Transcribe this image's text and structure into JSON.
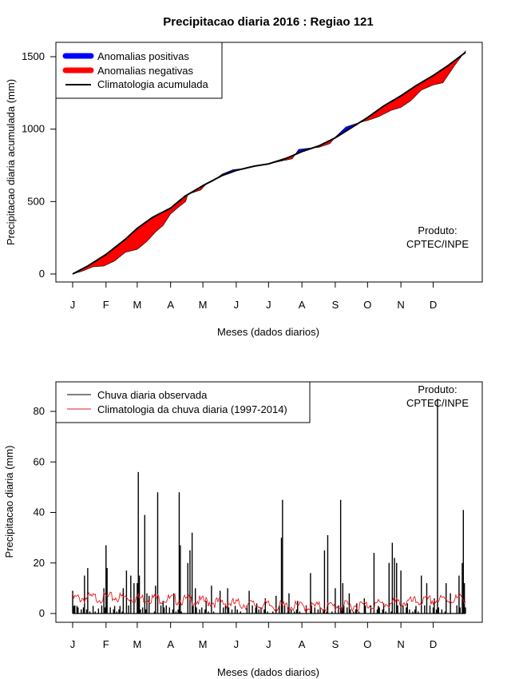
{
  "colors": {
    "positive": "#0000ff",
    "negative": "#ff0000",
    "line": "#000000",
    "clim_daily": "#e31a1c"
  },
  "chart_data": [
    {
      "type": "area",
      "title": "Precipitacao diaria 2016 : Regiao 121",
      "xlabel": "Meses (dados diarios)",
      "ylabel": "Precipitacao diaria acumulada (mm)",
      "ylim": [
        0,
        1560
      ],
      "yticks": [
        0,
        500,
        1000,
        1500
      ],
      "month_labels": [
        "J",
        "F",
        "M",
        "A",
        "M",
        "J",
        "J",
        "A",
        "S",
        "O",
        "N",
        "D"
      ],
      "month_start_day": [
        1,
        32,
        61,
        92,
        122,
        153,
        183,
        214,
        245,
        275,
        306,
        336
      ],
      "xlim_days": [
        1,
        366
      ],
      "legend": {
        "position": "top-left",
        "entries": [
          "Anomalias positivas",
          "Anomalias negativas",
          "Climatologia acumulada"
        ]
      },
      "annotation": [
        "Produto:",
        "CPTEC/INPE"
      ],
      "climatology": [
        [
          1,
          0
        ],
        [
          15,
          55
        ],
        [
          32,
          135
        ],
        [
          50,
          240
        ],
        [
          61,
          315
        ],
        [
          75,
          390
        ],
        [
          92,
          455
        ],
        [
          105,
          535
        ],
        [
          122,
          610
        ],
        [
          140,
          680
        ],
        [
          153,
          715
        ],
        [
          170,
          745
        ],
        [
          183,
          760
        ],
        [
          200,
          800
        ],
        [
          214,
          845
        ],
        [
          230,
          885
        ],
        [
          245,
          940
        ],
        [
          260,
          1010
        ],
        [
          275,
          1080
        ],
        [
          290,
          1160
        ],
        [
          306,
          1230
        ],
        [
          320,
          1300
        ],
        [
          336,
          1370
        ],
        [
          350,
          1440
        ],
        [
          366,
          1530
        ]
      ],
      "observed": [
        [
          1,
          0
        ],
        [
          10,
          20
        ],
        [
          20,
          50
        ],
        [
          30,
          55
        ],
        [
          40,
          90
        ],
        [
          50,
          150
        ],
        [
          61,
          170
        ],
        [
          70,
          225
        ],
        [
          78,
          290
        ],
        [
          85,
          335
        ],
        [
          92,
          415
        ],
        [
          100,
          465
        ],
        [
          106,
          500
        ],
        [
          108,
          550
        ],
        [
          120,
          580
        ],
        [
          125,
          620
        ],
        [
          131,
          640
        ],
        [
          140,
          690
        ],
        [
          150,
          720
        ],
        [
          160,
          728
        ],
        [
          170,
          742
        ],
        [
          183,
          760
        ],
        [
          195,
          780
        ],
        [
          205,
          795
        ],
        [
          211,
          860
        ],
        [
          220,
          868
        ],
        [
          230,
          875
        ],
        [
          240,
          900
        ],
        [
          245,
          945
        ],
        [
          255,
          1015
        ],
        [
          265,
          1040
        ],
        [
          275,
          1060
        ],
        [
          285,
          1085
        ],
        [
          297,
          1130
        ],
        [
          306,
          1150
        ],
        [
          315,
          1195
        ],
        [
          325,
          1270
        ],
        [
          336,
          1305
        ],
        [
          345,
          1320
        ],
        [
          355,
          1430
        ],
        [
          366,
          1540
        ]
      ]
    },
    {
      "type": "bar",
      "xlabel": "Meses (dados diarios)",
      "ylabel": "Precipitacao diaria (mm)",
      "ylim": [
        0,
        90
      ],
      "yticks": [
        0,
        20,
        40,
        60,
        80
      ],
      "month_labels": [
        "J",
        "F",
        "M",
        "A",
        "M",
        "J",
        "J",
        "A",
        "S",
        "O",
        "N",
        "D"
      ],
      "month_start_day": [
        1,
        32,
        61,
        92,
        122,
        153,
        183,
        214,
        245,
        275,
        306,
        336
      ],
      "xlim_days": [
        1,
        366
      ],
      "legend": {
        "position": "top-left",
        "entries": [
          "Chuva diaria observada",
          "Climatologia da chuva diaria (1997-2014)"
        ]
      },
      "annotation": [
        "Produto:",
        "CPTEC/INPE"
      ],
      "observed_daily_peaks": [
        [
          1,
          9
        ],
        [
          2,
          3
        ],
        [
          5,
          3
        ],
        [
          12,
          15
        ],
        [
          15,
          18
        ],
        [
          20,
          3
        ],
        [
          25,
          2
        ],
        [
          30,
          10
        ],
        [
          32,
          27
        ],
        [
          33,
          18
        ],
        [
          40,
          3
        ],
        [
          45,
          3
        ],
        [
          48,
          10
        ],
        [
          51,
          17
        ],
        [
          55,
          15
        ],
        [
          58,
          12
        ],
        [
          61,
          12
        ],
        [
          62,
          56
        ],
        [
          63,
          15
        ],
        [
          68,
          39
        ],
        [
          70,
          8
        ],
        [
          72,
          7
        ],
        [
          78,
          11
        ],
        [
          80,
          48
        ],
        [
          85,
          5
        ],
        [
          95,
          8
        ],
        [
          100,
          48
        ],
        [
          101,
          27
        ],
        [
          108,
          20
        ],
        [
          110,
          25
        ],
        [
          112,
          32
        ],
        [
          115,
          10
        ],
        [
          125,
          5
        ],
        [
          130,
          11
        ],
        [
          138,
          9
        ],
        [
          145,
          10
        ],
        [
          152,
          3
        ],
        [
          165,
          9
        ],
        [
          172,
          4
        ],
        [
          180,
          6
        ],
        [
          190,
          7
        ],
        [
          195,
          30
        ],
        [
          196,
          45
        ],
        [
          202,
          8
        ],
        [
          210,
          5
        ],
        [
          222,
          16
        ],
        [
          235,
          25
        ],
        [
          238,
          31
        ],
        [
          245,
          10
        ],
        [
          250,
          45
        ],
        [
          252,
          12
        ],
        [
          258,
          8
        ],
        [
          265,
          4
        ],
        [
          272,
          6
        ],
        [
          281,
          24
        ],
        [
          285,
          3
        ],
        [
          290,
          4
        ],
        [
          295,
          20
        ],
        [
          298,
          28
        ],
        [
          300,
          22
        ],
        [
          302,
          20
        ],
        [
          306,
          17
        ],
        [
          312,
          4
        ],
        [
          320,
          3
        ],
        [
          325,
          15
        ],
        [
          330,
          12
        ],
        [
          337,
          6
        ],
        [
          340,
          85
        ],
        [
          348,
          12
        ],
        [
          352,
          8
        ],
        [
          360,
          15
        ],
        [
          363,
          20
        ],
        [
          364,
          41
        ],
        [
          365,
          12
        ]
      ]
    }
  ],
  "x_ticks_doy": []
}
